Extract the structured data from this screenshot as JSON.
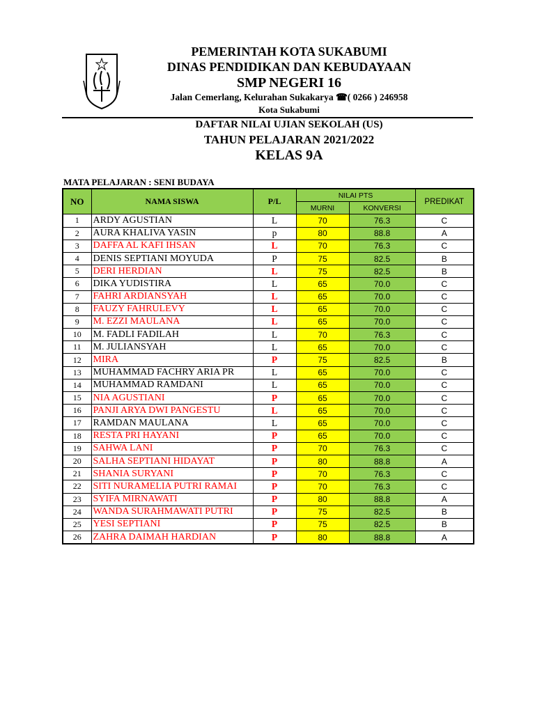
{
  "header": {
    "line1": "PEMERINTAH  KOTA  SUKABUMI",
    "line2": "DINAS  PENDIDIKAN  DAN KEBUDAYAAN",
    "school": "SMP  NEGERI  16",
    "address": "Jalan Cemerlang, Kelurahan Sukakarya ☎( 0266 ) 246958",
    "city": "Kota Sukabumi",
    "doc_title": "DAFTAR NILAI UJIAN SEKOLAH (US)",
    "year": "TAHUN PELAJARAN 2021/2022",
    "class": "KELAS 9A",
    "subject": "MATA PELAJARAN : SENI BUDAYA"
  },
  "colors": {
    "murni_bg": "#ffff00",
    "konversi_bg": "#92d050",
    "header_bg": "#92d050",
    "highlight_text": "#ff0000"
  },
  "table": {
    "headers": {
      "no": "NO",
      "nama": "NAMA SISWA",
      "pl": "P/L",
      "nilai": "NILAI PTS",
      "murni": "MURNI",
      "konversi": "KONVERSI",
      "predikat": "PREDIKAT"
    },
    "rows": [
      {
        "no": "1",
        "nama": "ARDY AGUSTIAN",
        "pl": "L",
        "murni": "70",
        "konversi": "76.3",
        "predikat": "C",
        "red": false
      },
      {
        "no": "2",
        "nama": "AURA KHALIVA YASIN",
        "pl": "p",
        "murni": "80",
        "konversi": "88.8",
        "predikat": "A",
        "red": false
      },
      {
        "no": "3",
        "nama": "DAFFA AL KAFI IHSAN",
        "pl": "L",
        "murni": "70",
        "konversi": "76.3",
        "predikat": "C",
        "red": true
      },
      {
        "no": "4",
        "nama": "DENIS SEPTIANI MOYUDA",
        "pl": "P",
        "murni": "75",
        "konversi": "82.5",
        "predikat": "B",
        "red": false
      },
      {
        "no": "5",
        "nama": "DERI HERDIAN",
        "pl": "L",
        "murni": "75",
        "konversi": "82.5",
        "predikat": "B",
        "red": true
      },
      {
        "no": "6",
        "nama": "DIKA YUDISTIRA",
        "pl": "L",
        "murni": "65",
        "konversi": "70.0",
        "predikat": "C",
        "red": false
      },
      {
        "no": "7",
        "nama": "FAHRI ARDIANSYAH",
        "pl": "L",
        "murni": "65",
        "konversi": "70.0",
        "predikat": "C",
        "red": true
      },
      {
        "no": "8",
        "nama": "FAUZY FAHRULEVY",
        "pl": "L",
        "murni": "65",
        "konversi": "70.0",
        "predikat": "C",
        "red": true
      },
      {
        "no": "9",
        "nama": "M. EZZI MAULANA",
        "pl": "L",
        "murni": "65",
        "konversi": "70.0",
        "predikat": "C",
        "red": true
      },
      {
        "no": "10",
        "nama": "M. FADLI FADILAH",
        "pl": "L",
        "murni": "70",
        "konversi": "76.3",
        "predikat": "C",
        "red": false
      },
      {
        "no": "11",
        "nama": "M. JULIANSYAH",
        "pl": "L",
        "murni": "65",
        "konversi": "70.0",
        "predikat": "C",
        "red": false
      },
      {
        "no": "12",
        "nama": "MIRA",
        "pl": "P",
        "murni": "75",
        "konversi": "82.5",
        "predikat": "B",
        "red": true
      },
      {
        "no": "13",
        "nama": "MUHAMMAD FACHRY ARIA PR",
        "pl": "L",
        "murni": "65",
        "konversi": "70.0",
        "predikat": "C",
        "red": false
      },
      {
        "no": "14",
        "nama": "MUHAMMAD RAMDANI",
        "pl": "L",
        "murni": "65",
        "konversi": "70.0",
        "predikat": "C",
        "red": false
      },
      {
        "no": "15",
        "nama": "NIA AGUSTIANI",
        "pl": "P",
        "murni": "65",
        "konversi": "70.0",
        "predikat": "C",
        "red": true
      },
      {
        "no": "16",
        "nama": "PANJI ARYA DWI PANGESTU",
        "pl": "L",
        "murni": "65",
        "konversi": "70.0",
        "predikat": "C",
        "red": true
      },
      {
        "no": "17",
        "nama": "RAMDAN MAULANA",
        "pl": "L",
        "murni": "65",
        "konversi": "70.0",
        "predikat": "C",
        "red": false
      },
      {
        "no": "18",
        "nama": "RESTA PRI HAYANI",
        "pl": "P",
        "murni": "65",
        "konversi": "70.0",
        "predikat": "C",
        "red": true
      },
      {
        "no": "19",
        "nama": "SAHWA LANI",
        "pl": "P",
        "murni": "70",
        "konversi": "76.3",
        "predikat": "C",
        "red": true
      },
      {
        "no": "20",
        "nama": "SALHA SEPTIANI HIDAYAT",
        "pl": "P",
        "murni": "80",
        "konversi": "88.8",
        "predikat": "A",
        "red": true
      },
      {
        "no": "21",
        "nama": "SHANIA SURYANI",
        "pl": "P",
        "murni": "70",
        "konversi": "76.3",
        "predikat": "C",
        "red": true
      },
      {
        "no": "22",
        "nama": "SITI NURAMELIA PUTRI RAMAI",
        "pl": "P",
        "murni": "70",
        "konversi": "76.3",
        "predikat": "C",
        "red": true
      },
      {
        "no": "23",
        "nama": "SYIFA MIRNAWATI",
        "pl": "P",
        "murni": "80",
        "konversi": "88.8",
        "predikat": "A",
        "red": true
      },
      {
        "no": "24",
        "nama": "WANDA SURAHMAWATI PUTRI",
        "pl": "P",
        "murni": "75",
        "konversi": "82.5",
        "predikat": "B",
        "red": true
      },
      {
        "no": "25",
        "nama": "YESI SEPTIANI",
        "pl": "P",
        "murni": "75",
        "konversi": "82.5",
        "predikat": "B",
        "red": true
      },
      {
        "no": "26",
        "nama": "ZAHRA DAIMAH HARDIAN",
        "pl": "P",
        "murni": "80",
        "konversi": "88.8",
        "predikat": "A",
        "red": true
      }
    ]
  }
}
